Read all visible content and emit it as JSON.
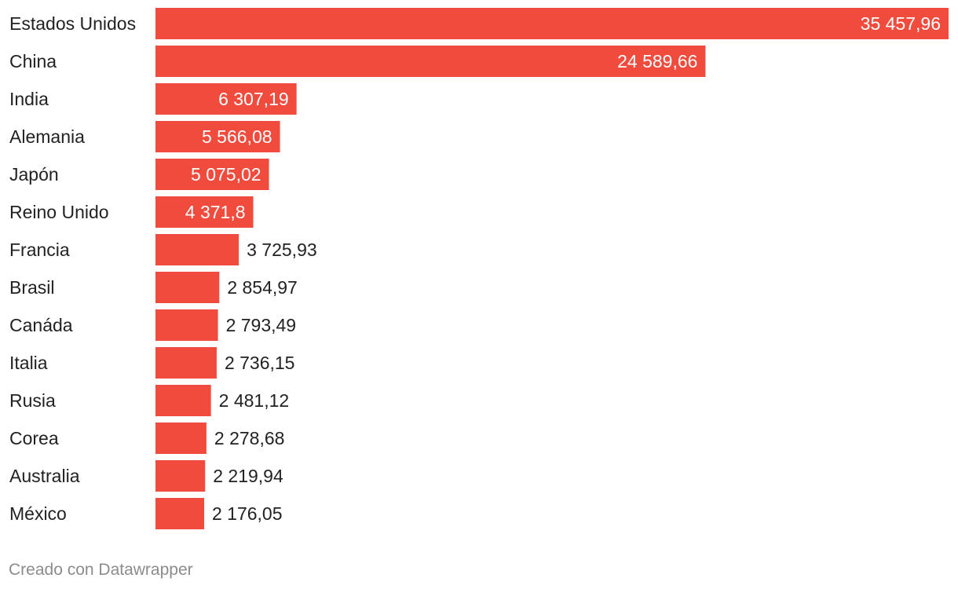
{
  "chart_data": {
    "type": "bar",
    "orientation": "horizontal",
    "title": "",
    "xlabel": "",
    "ylabel": "",
    "categories": [
      "Estados Unidos",
      "China",
      "India",
      "Alemania",
      "Japón",
      "Reino Unido",
      "Francia",
      "Brasil",
      "Canáda",
      "Italia",
      "Rusia",
      "Corea",
      "Australia",
      "México"
    ],
    "values": [
      35457.96,
      24589.66,
      6307.19,
      5566.08,
      5075.02,
      4371.8,
      3725.93,
      2854.97,
      2793.49,
      2736.15,
      2481.12,
      2278.68,
      2219.94,
      2176.05
    ],
    "value_labels": [
      "35 457,96",
      "24 589,66",
      "6 307,19",
      "5 566,08",
      "5 075,02",
      "4 371,8",
      "3 725,93",
      "2 854,97",
      "2 793,49",
      "2 736,15",
      "2 481,12",
      "2 278,68",
      "2 219,94",
      "2 176,05"
    ],
    "xlim": [
      0,
      35457.96
    ],
    "grid": false,
    "bar_color": "#f04b3c"
  },
  "footer": {
    "credit": "Creado con Datawrapper"
  }
}
